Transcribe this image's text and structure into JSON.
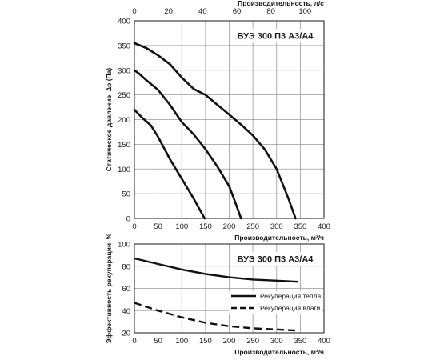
{
  "chart_data": [
    {
      "type": "line",
      "title": "ВУЭ 300 П3 А3/А4",
      "xlabel": "Производительность, м³/ч",
      "ylabel": "Статическое давление, ∆p (Па)",
      "x2label": "Производительность, л/с",
      "xlim": [
        0,
        400
      ],
      "ylim": [
        0,
        400
      ],
      "x2lim": [
        0,
        111.11
      ],
      "xticks": [
        0,
        50,
        100,
        150,
        200,
        250,
        300,
        350,
        400
      ],
      "yticks": [
        0,
        50,
        100,
        150,
        200,
        250,
        300,
        350,
        400
      ],
      "x2ticks": [
        0,
        20,
        40,
        60,
        80,
        100
      ],
      "grid": true,
      "series": [
        {
          "x": [
            0,
            25,
            50,
            75,
            100,
            125,
            150,
            175,
            200,
            225,
            250,
            275,
            300,
            325,
            340
          ],
          "y": [
            355,
            345,
            330,
            312,
            285,
            262,
            250,
            230,
            210,
            190,
            168,
            140,
            100,
            40,
            0
          ]
        },
        {
          "x": [
            0,
            10,
            25,
            50,
            75,
            100,
            125,
            150,
            175,
            200,
            210,
            225
          ],
          "y": [
            300,
            293,
            280,
            260,
            230,
            195,
            170,
            140,
            105,
            65,
            40,
            0
          ]
        },
        {
          "x": [
            0,
            15,
            35,
            50,
            75,
            100,
            125,
            148
          ],
          "y": [
            220,
            205,
            188,
            165,
            120,
            80,
            40,
            0
          ]
        }
      ],
      "color": "#111111"
    },
    {
      "type": "line",
      "title": "ВУЭ 300 П3 А3/А4",
      "xlabel": "Производительность, м³/ч",
      "ylabel": "Эффективность рекуперации, %",
      "xlim": [
        0,
        400
      ],
      "ylim": [
        20,
        100
      ],
      "xticks": [
        0,
        50,
        100,
        150,
        200,
        250,
        300,
        350,
        400
      ],
      "yticks": [
        20,
        40,
        60,
        80,
        100
      ],
      "grid": true,
      "legend_position": "right",
      "series": [
        {
          "name": "Рекуперация тепла",
          "style": "solid",
          "x": [
            0,
            50,
            100,
            150,
            200,
            250,
            300,
            345
          ],
          "y": [
            87,
            82,
            77,
            73,
            70,
            68,
            67,
            66
          ]
        },
        {
          "name": "Рекуперация влаги",
          "style": "dashed",
          "x": [
            0,
            50,
            100,
            150,
            200,
            250,
            300,
            345
          ],
          "y": [
            47,
            40,
            34,
            29,
            26,
            24,
            23,
            22
          ]
        }
      ],
      "color": "#111111"
    }
  ]
}
